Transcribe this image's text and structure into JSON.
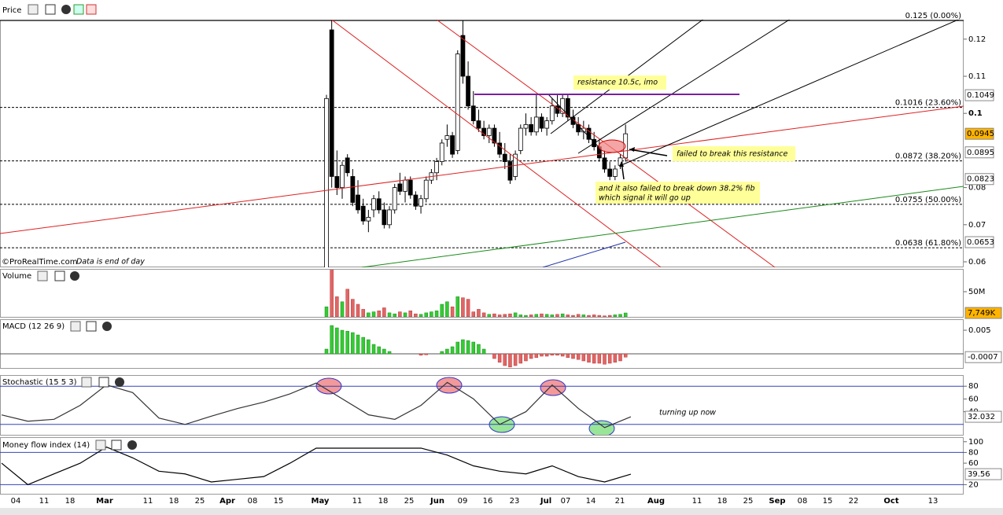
{
  "chart_data": [
    {
      "type": "candlestick",
      "title": "Price",
      "open": [
        0.058,
        0.1225,
        0.083,
        0.08,
        0.088,
        0.083,
        0.078,
        0.075,
        0.071,
        0.074,
        0.077,
        0.074,
        0.07,
        0.074,
        0.081,
        0.079,
        0.082,
        0.078,
        0.075,
        0.077,
        0.082,
        0.084,
        0.087,
        0.093,
        0.094,
        0.09,
        0.121,
        0.11,
        0.102,
        0.098,
        0.096,
        0.094,
        0.096,
        0.092,
        0.089,
        0.087,
        0.083,
        0.09,
        0.096,
        0.097,
        0.095,
        0.099,
        0.096,
        0.098,
        0.102,
        0.1,
        0.104,
        0.099,
        0.097,
        0.095,
        0.096,
        0.093,
        0.091,
        0.088,
        0.085,
        0.083,
        0.086,
        0.088
      ],
      "high": [
        0.105,
        0.125,
        0.09,
        0.087,
        0.089,
        0.085,
        0.082,
        0.077,
        0.074,
        0.078,
        0.079,
        0.076,
        0.075,
        0.081,
        0.084,
        0.083,
        0.083,
        0.079,
        0.078,
        0.083,
        0.085,
        0.088,
        0.093,
        0.097,
        0.095,
        0.117,
        0.125,
        0.114,
        0.106,
        0.101,
        0.098,
        0.097,
        0.097,
        0.095,
        0.092,
        0.089,
        0.09,
        0.097,
        0.1,
        0.099,
        0.105,
        0.1,
        0.099,
        0.104,
        0.105,
        0.105,
        0.105,
        0.101,
        0.099,
        0.098,
        0.097,
        0.095,
        0.093,
        0.09,
        0.087,
        0.086,
        0.089,
        0.097
      ],
      "low": [
        0.058,
        0.08,
        0.078,
        0.077,
        0.083,
        0.075,
        0.073,
        0.07,
        0.068,
        0.072,
        0.073,
        0.069,
        0.069,
        0.073,
        0.078,
        0.076,
        0.077,
        0.074,
        0.073,
        0.076,
        0.081,
        0.082,
        0.086,
        0.091,
        0.088,
        0.089,
        0.108,
        0.101,
        0.097,
        0.095,
        0.093,
        0.092,
        0.091,
        0.088,
        0.085,
        0.081,
        0.082,
        0.089,
        0.094,
        0.094,
        0.094,
        0.095,
        0.094,
        0.097,
        0.099,
        0.099,
        0.098,
        0.096,
        0.094,
        0.093,
        0.092,
        0.09,
        0.087,
        0.084,
        0.082,
        0.082,
        0.085,
        0.087
      ],
      "close": [
        0.104,
        0.083,
        0.08,
        0.086,
        0.084,
        0.076,
        0.074,
        0.071,
        0.072,
        0.077,
        0.074,
        0.07,
        0.074,
        0.08,
        0.079,
        0.082,
        0.078,
        0.075,
        0.077,
        0.082,
        0.084,
        0.087,
        0.092,
        0.094,
        0.089,
        0.116,
        0.11,
        0.102,
        0.098,
        0.096,
        0.094,
        0.096,
        0.092,
        0.089,
        0.087,
        0.082,
        0.089,
        0.096,
        0.097,
        0.095,
        0.099,
        0.096,
        0.098,
        0.102,
        0.1,
        0.104,
        0.099,
        0.097,
        0.095,
        0.096,
        0.093,
        0.091,
        0.088,
        0.085,
        0.083,
        0.085,
        0.088,
        0.0945
      ],
      "up_color": "#ffffff",
      "down_color": "#000000",
      "ylim": [
        0.05852,
        0.12525
      ],
      "yticks": [
        0.06,
        0.07,
        0.08,
        0.1,
        0.11,
        0.12
      ],
      "fib_levels": [
        {
          "value": 0.125,
          "label": "0.125 (0.00%)"
        },
        {
          "value": 0.1016,
          "label": "0.1016 (23.60%)"
        },
        {
          "value": 0.0872,
          "label": "0.0872 (38.20%)"
        },
        {
          "value": 0.0755,
          "label": "0.0755 (50.00%)"
        },
        {
          "value": 0.0638,
          "label": "0.0638 (61.80%)"
        }
      ],
      "price_markers": [
        {
          "value": 0.1049,
          "label": "0.1049",
          "color": "#808080",
          "fill": "#ffffff"
        },
        {
          "value": 0.0945,
          "label": "0.0945",
          "color": "#000000",
          "fill": "#ffb300"
        },
        {
          "value": 0.0895,
          "label": "0.0895",
          "color": "#008000",
          "fill": "#ffffff"
        },
        {
          "value": 0.0823,
          "label": "0.0823",
          "color": "#606060",
          "fill": "#ffffff"
        },
        {
          "value": 0.0653,
          "label": "0.0653",
          "color": "#1a1aa0",
          "fill": "#ffffff"
        }
      ],
      "annotations": [
        "resistance 10.5c, imo",
        "failed to break this resistance",
        "and it also failed to break down 38.2% fib",
        "which signal it will go up"
      ],
      "source": "©ProRealTime.com",
      "note": "Data is end of day"
    },
    {
      "type": "bar",
      "title": "Volume",
      "values": [
        20,
        95,
        40,
        30,
        55,
        35,
        25,
        15,
        8,
        10,
        12,
        18,
        8,
        6,
        10,
        8,
        12,
        6,
        5,
        8,
        10,
        12,
        25,
        30,
        20,
        40,
        38,
        35,
        10,
        15,
        8,
        5,
        6,
        4,
        5,
        6,
        8,
        4,
        3,
        4,
        5,
        6,
        5,
        4,
        5,
        6,
        4,
        3,
        5,
        4,
        3,
        4,
        3,
        2,
        3,
        4,
        5,
        7.749
      ],
      "up_color": "#33cc33",
      "down_color": "#e06666",
      "ylim": [
        0,
        93.75
      ],
      "yticks": [
        {
          "value": 50,
          "label": "50M"
        }
      ],
      "last_value": {
        "value": 7.749,
        "label": "7,749K"
      }
    },
    {
      "type": "bar",
      "title": "MACD (12 26 9)",
      "values": [
        0.001,
        0.006,
        0.0055,
        0.005,
        0.0048,
        0.0045,
        0.004,
        0.0035,
        0.003,
        0.002,
        0.0015,
        0.001,
        0.0005,
        0,
        0,
        0,
        0,
        0,
        -0.0003,
        -0.0002,
        0,
        0,
        0.0005,
        0.001,
        0.0015,
        0.0025,
        0.003,
        0.0028,
        0.0025,
        0.002,
        0.001,
        0,
        -0.001,
        -0.0018,
        -0.0025,
        -0.0028,
        -0.0025,
        -0.002,
        -0.0015,
        -0.001,
        -0.0008,
        -0.0005,
        -0.0005,
        -0.0003,
        -0.0003,
        -0.0005,
        -0.0008,
        -0.001,
        -0.0012,
        -0.0015,
        -0.0018,
        -0.002,
        -0.002,
        -0.0022,
        -0.002,
        -0.0018,
        -0.0015,
        -0.0007
      ],
      "up_color": "#33cc33",
      "down_color": "#e06666",
      "ylim": [
        -0.003,
        0.00717
      ],
      "yticks": [
        0.005
      ],
      "last_value": -0.0007
    },
    {
      "type": "line",
      "title": "Stochastic (15 5 3)",
      "values": [
        35,
        25,
        28,
        50,
        82,
        70,
        30,
        20,
        33,
        45,
        55,
        68,
        85,
        60,
        35,
        28,
        50,
        86,
        60,
        20,
        40,
        82,
        45,
        15,
        32.032
      ],
      "color": "#333333",
      "levels": [
        80,
        20
      ],
      "ylim": [
        3.7,
        96.3
      ],
      "yticks": [
        40,
        60,
        80
      ],
      "last_value": 32.032,
      "annotation": "turning up now"
    },
    {
      "type": "line",
      "title": "Money flow index (14)",
      "values": [
        60,
        20,
        40,
        60,
        90,
        70,
        45,
        40,
        25,
        30,
        35,
        60,
        88,
        88,
        88,
        88,
        88,
        75,
        55,
        45,
        40,
        55,
        35,
        25,
        39.56
      ],
      "color": "#000000",
      "levels": [
        80,
        20
      ],
      "ylim": [
        3,
        107
      ],
      "yticks": [
        20,
        60,
        80,
        100
      ],
      "last_value": 39.56
    }
  ],
  "x_labels": [
    "04",
    "11",
    "18",
    "Mar",
    "11",
    "18",
    "25",
    "Apr",
    "08",
    "15",
    "May",
    "11",
    "18",
    "25",
    "Jun",
    "09",
    "16",
    "23",
    "Jul",
    "07",
    "14",
    "21",
    "Aug",
    "11",
    "18",
    "25",
    "Sep",
    "08",
    "15",
    "22",
    "Oct",
    "13"
  ]
}
